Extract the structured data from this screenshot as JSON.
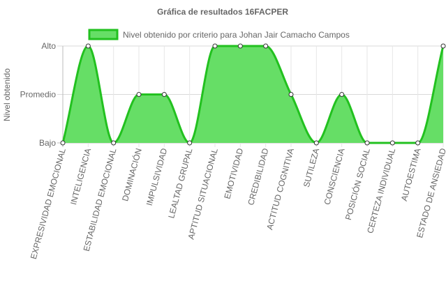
{
  "chart_data": {
    "type": "area",
    "title": "Gráfica de resultados 16FACPER",
    "xlabel": "",
    "ylabel": "Nivel obtenido",
    "y_levels": [
      "Bajo",
      "Promedio",
      "Alto"
    ],
    "ylim": [
      0,
      2
    ],
    "grid": true,
    "legend_position": "top-center",
    "categories": [
      "EXPRESIVIDAD EMOCIONAL",
      "INTELIGENCIA",
      "ESTABILIDAD EMOCIONAL",
      "DOMINACIÓN",
      "IMPULSIVIDAD",
      "LEALTAD GRUPAL",
      "APTITUD SITUACIONAL",
      "EMOTIVIDAD",
      "CREDIBILIDAD",
      "ACTITUD COGNITIVA",
      "SUTILEZA",
      "CONSCIENCIA",
      "POSICIÓN SOCIAL",
      "CERTEZA INDIVIDUAL",
      "AUTOESTIMA",
      "ESTADO DE ANSIEDAD"
    ],
    "series": [
      {
        "name": "Nivel obtenido por criterio para Johan Jair Camacho Campos",
        "values": [
          0,
          2,
          0,
          1,
          1,
          0,
          2,
          2,
          2,
          1,
          0,
          1,
          0,
          0,
          0,
          2
        ],
        "line_color": "#22c11f",
        "fill_color": "#66de66"
      }
    ]
  }
}
